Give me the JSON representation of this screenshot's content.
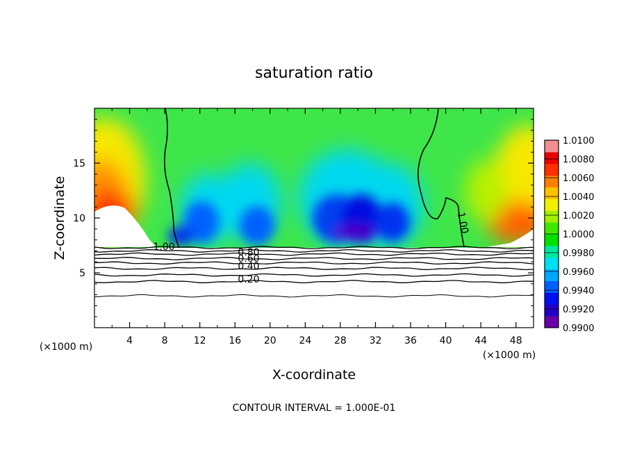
{
  "chart_data": {
    "type": "heatmap",
    "title": "saturation ratio",
    "xlabel": "X-coordinate",
    "ylabel": "Z-coordinate",
    "x_unit_note": "(×1000 m)",
    "footer": "CONTOUR INTERVAL = 1.000E-01",
    "xlim": [
      0,
      50
    ],
    "ylim": [
      0,
      20
    ],
    "x_ticks": [
      "4",
      "8",
      "12",
      "16",
      "20",
      "24",
      "28",
      "32",
      "36",
      "40",
      "44",
      "48"
    ],
    "y_ticks": [
      "5",
      "10",
      "15"
    ],
    "colorbar": {
      "min": 0.99,
      "max": 1.01,
      "labels": [
        "1.0100",
        "1.0080",
        "1.0060",
        "1.0040",
        "1.0020",
        "1.0000",
        "0.9980",
        "0.9960",
        "0.9940",
        "0.9920",
        "0.9900"
      ],
      "colors": [
        "#6a00a8",
        "#2400c8",
        "#0010f0",
        "#0060ff",
        "#00a8ff",
        "#00e0f0",
        "#00e8a0",
        "#00e000",
        "#40e800",
        "#a0f000",
        "#f0f000",
        "#ffc000",
        "#ff8000",
        "#ff3000",
        "#e80000",
        "#f09090"
      ]
    },
    "contour_labels": [
      "1.00",
      "1.00",
      "0.80",
      "0.60",
      "0.40",
      "0.20"
    ],
    "contour_levels_z": [
      {
        "level": 0.9,
        "z": 7.3
      },
      {
        "level": 0.8,
        "z": 7.0
      },
      {
        "level": 0.7,
        "z": 6.7
      },
      {
        "level": 0.6,
        "z": 6.3
      },
      {
        "level": 0.5,
        "z": 5.9
      },
      {
        "level": 0.4,
        "z": 5.4
      },
      {
        "level": 0.3,
        "z": 4.8
      },
      {
        "level": 0.2,
        "z": 4.2
      },
      {
        "level": 0.1,
        "z": 2.9
      }
    ]
  }
}
